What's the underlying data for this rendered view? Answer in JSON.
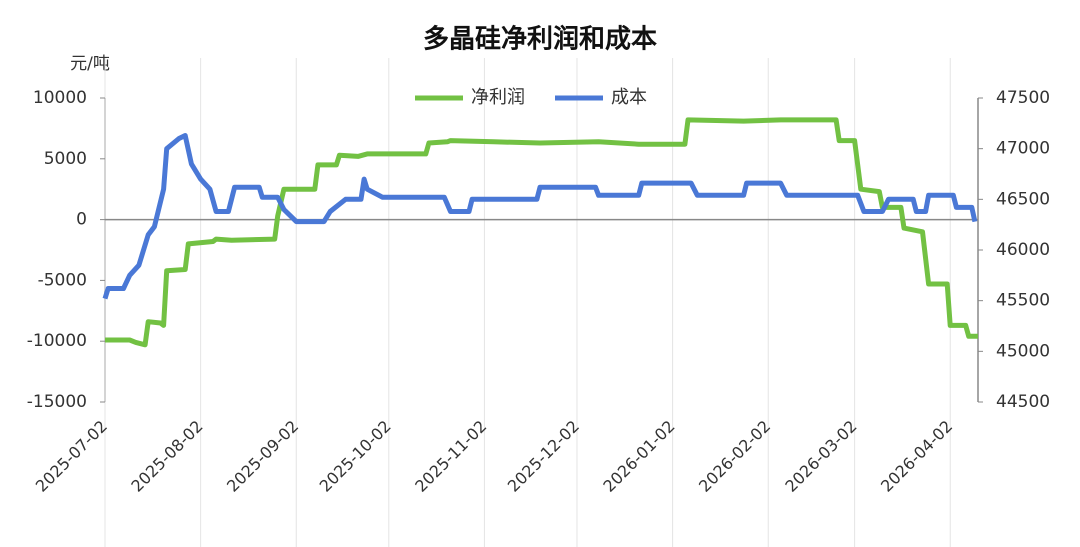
{
  "chart_data": {
    "type": "line",
    "title": "多晶硅净利润和成本",
    "y_unit": "元/吨",
    "xlim": [
      "2025-07-02",
      "2026-04-11"
    ],
    "xticks": [
      "2025-07-02",
      "2025-08-02",
      "2025-09-02",
      "2025-10-02",
      "2025-11-02",
      "2025-12-02",
      "2026-01-02",
      "2026-02-02",
      "2026-03-02",
      "2026-04-02"
    ],
    "ylim": [
      -15000,
      10000
    ],
    "yticks": [
      10000,
      5000,
      0,
      -5000,
      -10000,
      -15000
    ],
    "y2lim": [
      44500,
      47500
    ],
    "y2ticks": [
      47500,
      47000,
      46500,
      46000,
      45500,
      45000,
      44500
    ],
    "xgrid": true,
    "series": [
      {
        "name": "净利润",
        "color": "#72c143",
        "axis": "y",
        "x": [
          "2025-07-02",
          "2025-07-10",
          "2025-07-12",
          "2025-07-15",
          "2025-07-16",
          "2025-07-20",
          "2025-07-21",
          "2025-07-22",
          "2025-07-28",
          "2025-07-29",
          "2025-08-06",
          "2025-08-07",
          "2025-08-12",
          "2025-08-26",
          "2025-08-27",
          "2025-08-29",
          "2025-09-08",
          "2025-09-09",
          "2025-09-15",
          "2025-09-16",
          "2025-09-22",
          "2025-09-25",
          "2025-10-14",
          "2025-10-15",
          "2025-10-21",
          "2025-10-22",
          "2025-11-05",
          "2025-11-20",
          "2025-12-09",
          "2025-12-22",
          "2026-01-06",
          "2026-01-07",
          "2026-01-25",
          "2026-02-06",
          "2026-02-24",
          "2026-02-25",
          "2026-03-02",
          "2026-03-04",
          "2026-03-10",
          "2026-03-11",
          "2026-03-17",
          "2026-03-18",
          "2026-03-24",
          "2026-03-26",
          "2026-04-01",
          "2026-04-02",
          "2026-04-07",
          "2026-04-08",
          "2026-04-11"
        ],
        "values": [
          -9900,
          -9900,
          -10100,
          -10300,
          -8400,
          -8500,
          -8700,
          -4200,
          -4100,
          -2000,
          -1800,
          -1600,
          -1700,
          -1600,
          300,
          2500,
          2500,
          4500,
          4500,
          5300,
          5200,
          5400,
          5400,
          6300,
          6400,
          6500,
          6400,
          6300,
          6400,
          6200,
          6200,
          8200,
          8100,
          8200,
          8200,
          6500,
          6500,
          2500,
          2300,
          1000,
          1000,
          -700,
          -1000,
          -5300,
          -5300,
          -8700,
          -8700,
          -9600,
          -9600
        ]
      },
      {
        "name": "成本",
        "color": "#4a78d6",
        "axis": "y2",
        "x": [
          "2025-07-02",
          "2025-07-03",
          "2025-07-08",
          "2025-07-10",
          "2025-07-13",
          "2025-07-16",
          "2025-07-18",
          "2025-07-21",
          "2025-07-22",
          "2025-07-26",
          "2025-07-28",
          "2025-07-30",
          "2025-08-02",
          "2025-08-05",
          "2025-08-07",
          "2025-08-11",
          "2025-08-13",
          "2025-08-21",
          "2025-08-22",
          "2025-08-27",
          "2025-08-29",
          "2025-09-02",
          "2025-09-11",
          "2025-09-13",
          "2025-09-18",
          "2025-09-23",
          "2025-09-24",
          "2025-09-25",
          "2025-09-30",
          "2025-10-20",
          "2025-10-22",
          "2025-10-28",
          "2025-10-29",
          "2025-11-19",
          "2025-11-20",
          "2025-12-08",
          "2025-12-09",
          "2025-12-22",
          "2025-12-23",
          "2026-01-08",
          "2026-01-10",
          "2026-01-25",
          "2026-01-26",
          "2026-02-06",
          "2026-02-08",
          "2026-03-03",
          "2026-03-05",
          "2026-03-11",
          "2026-03-13",
          "2026-03-21",
          "2026-03-22",
          "2026-03-25",
          "2026-03-26",
          "2026-04-03",
          "2026-04-04",
          "2026-04-09",
          "2026-04-10"
        ],
        "values": [
          45520,
          45620,
          45620,
          45750,
          45850,
          46150,
          46230,
          46600,
          47000,
          47100,
          47130,
          46850,
          46700,
          46600,
          46380,
          46380,
          46620,
          46620,
          46520,
          46520,
          46400,
          46280,
          46280,
          46380,
          46500,
          46500,
          46700,
          46600,
          46520,
          46520,
          46380,
          46380,
          46500,
          46500,
          46620,
          46620,
          46540,
          46540,
          46660,
          46660,
          46540,
          46540,
          46660,
          46660,
          46540,
          46540,
          46380,
          46380,
          46500,
          46500,
          46380,
          46380,
          46540,
          46540,
          46420,
          46420,
          46280
        ]
      }
    ]
  }
}
